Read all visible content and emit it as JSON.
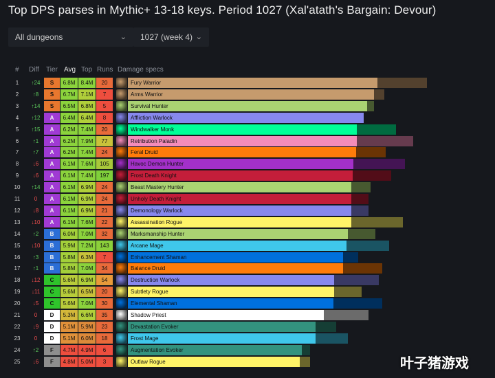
{
  "title": "Top DPS parses in Mythic+ 13-18 keys. Period 1027 (Xal'atath's Bargain: Devour)",
  "filters": {
    "dungeon": "All dungeons",
    "period": "1027 (week 4)"
  },
  "headers": {
    "rank": "#",
    "diff": "Diff",
    "tier": "Tier",
    "avg": "Avg",
    "top": "Top",
    "runs": "Runs",
    "specs": "Damage specs"
  },
  "colors": {
    "tierS": "#e8772e",
    "tierA": "#a03ad4",
    "tierB": "#2b6ed6",
    "tierC": "#2fc42b",
    "tierD": "#ffffff",
    "tierF": "#8e8e8e",
    "diffPos": "#5cc85c",
    "diffNeg": "#ee4e4e"
  },
  "watermark": "叶子猪游戏",
  "rows": [
    {
      "rank": "1",
      "diff": "↑24",
      "dir": "up",
      "tier": "S",
      "avg": "6.8M",
      "top": "8.4M",
      "runs": "20",
      "spec": "Fury Warrior",
      "color": "#c69b6d",
      "avgFrac": 0.725,
      "topFrac": 0.87,
      "avgBg": "#8bd33c",
      "topBg": "#8bd33c",
      "runsBg": "#e86a3a"
    },
    {
      "rank": "2",
      "diff": "↑8",
      "dir": "up",
      "tier": "S",
      "avg": "6.7M",
      "top": "7.1M",
      "runs": "7",
      "spec": "Arms Warrior",
      "color": "#c69b6d",
      "avgFrac": 0.715,
      "topFrac": 0.745,
      "avgBg": "#8bd33c",
      "topBg": "#b1cf3a",
      "runsBg": "#ee4e3e"
    },
    {
      "rank": "3",
      "diff": "↑14",
      "dir": "up",
      "tier": "S",
      "avg": "6.5M",
      "top": "6.8M",
      "runs": "5",
      "spec": "Survival Hunter",
      "color": "#aad372",
      "avgFrac": 0.695,
      "topFrac": 0.715,
      "avgBg": "#8bd33c",
      "topBg": "#b1cf3a",
      "runsBg": "#ee4e3e"
    },
    {
      "rank": "4",
      "diff": "↑12",
      "dir": "up",
      "tier": "A",
      "avg": "6.4M",
      "top": "6.4M",
      "runs": "8",
      "spec": "Affliction Warlock",
      "color": "#8788ee",
      "avgFrac": 0.685,
      "topFrac": 0.685,
      "avgBg": "#8bd33c",
      "topBg": "#b1cf3a",
      "runsBg": "#ee4e3e"
    },
    {
      "rank": "5",
      "diff": "↑15",
      "dir": "up",
      "tier": "A",
      "avg": "6.2M",
      "top": "7.4M",
      "runs": "20",
      "spec": "Windwalker Monk",
      "color": "#00ff98",
      "avgFrac": 0.665,
      "topFrac": 0.78,
      "avgBg": "#8bd33c",
      "topBg": "#8bd33c",
      "runsBg": "#e86a3a"
    },
    {
      "rank": "6",
      "diff": "↑1",
      "dir": "up",
      "tier": "A",
      "avg": "6.2M",
      "top": "7.9M",
      "runs": "77",
      "spec": "Retribution Paladin",
      "color": "#f48cba",
      "avgFrac": 0.665,
      "topFrac": 0.83,
      "avgBg": "#8bd33c",
      "topBg": "#8bd33c",
      "runsBg": "#c9c23a"
    },
    {
      "rank": "7",
      "diff": "↑7",
      "dir": "up",
      "tier": "A",
      "avg": "6.2M",
      "top": "7.4M",
      "runs": "24",
      "spec": "Feral Druid",
      "color": "#ff7c0a",
      "avgFrac": 0.663,
      "topFrac": 0.75,
      "avgBg": "#8bd33c",
      "topBg": "#8bd33c",
      "runsBg": "#e86a3a"
    },
    {
      "rank": "8",
      "diff": "↓6",
      "dir": "down",
      "tier": "A",
      "avg": "6.1M",
      "top": "7.6M",
      "runs": "105",
      "spec": "Havoc Demon Hunter",
      "color": "#a330c9",
      "avgFrac": 0.655,
      "topFrac": 0.805,
      "avgBg": "#8bd33c",
      "topBg": "#8bd33c",
      "runsBg": "#a8c83a"
    },
    {
      "rank": "9",
      "diff": "↓6",
      "dir": "down",
      "tier": "A",
      "avg": "6.1M",
      "top": "7.4M",
      "runs": "197",
      "spec": "Frost Death Knight",
      "color": "#c41e3a",
      "avgFrac": 0.653,
      "topFrac": 0.765,
      "avgBg": "#8bd33c",
      "topBg": "#8bd33c",
      "runsBg": "#7fd03a"
    },
    {
      "rank": "10",
      "diff": "↑14",
      "dir": "up",
      "tier": "A",
      "avg": "6.1M",
      "top": "6.9M",
      "runs": "24",
      "spec": "Beast Mastery Hunter",
      "color": "#aad372",
      "avgFrac": 0.65,
      "topFrac": 0.705,
      "avgBg": "#8bd33c",
      "topBg": "#b1cf3a",
      "runsBg": "#e86a3a"
    },
    {
      "rank": "11",
      "diff": "0",
      "dir": "neg",
      "tier": "A",
      "avg": "6.1M",
      "top": "6.9M",
      "runs": "24",
      "spec": "Unholy Death Knight",
      "color": "#c41e3a",
      "avgFrac": 0.65,
      "topFrac": 0.7,
      "avgBg": "#8bd33c",
      "topBg": "#b1cf3a",
      "runsBg": "#e86a3a"
    },
    {
      "rank": "12",
      "diff": "↓8",
      "dir": "down",
      "tier": "A",
      "avg": "6.1M",
      "top": "6.9M",
      "runs": "21",
      "spec": "Demonology Warlock",
      "color": "#8788ee",
      "avgFrac": 0.65,
      "topFrac": 0.7,
      "avgBg": "#8bd33c",
      "topBg": "#b1cf3a",
      "runsBg": "#e86a3a"
    },
    {
      "rank": "13",
      "diff": "↓10",
      "dir": "down",
      "tier": "A",
      "avg": "6.1M",
      "top": "7.6M",
      "runs": "22",
      "spec": "Assassination Rogue",
      "color": "#fff468",
      "avgFrac": 0.65,
      "topFrac": 0.8,
      "avgBg": "#8bd33c",
      "topBg": "#8bd33c",
      "runsBg": "#e86a3a"
    },
    {
      "rank": "14",
      "diff": "↑2",
      "dir": "up",
      "tier": "B",
      "avg": "6.0M",
      "top": "7.0M",
      "runs": "32",
      "spec": "Marksmanship Hunter",
      "color": "#aad372",
      "avgFrac": 0.64,
      "topFrac": 0.72,
      "avgBg": "#a3d03a",
      "topBg": "#8bd33c",
      "runsBg": "#e86a3a"
    },
    {
      "rank": "15",
      "diff": "↓10",
      "dir": "down",
      "tier": "B",
      "avg": "5.9M",
      "top": "7.2M",
      "runs": "143",
      "spec": "Arcane Mage",
      "color": "#3fc7eb",
      "avgFrac": 0.635,
      "topFrac": 0.76,
      "avgBg": "#a3d03a",
      "topBg": "#8bd33c",
      "runsBg": "#8bd03a"
    },
    {
      "rank": "16",
      "diff": "↑3",
      "dir": "up",
      "tier": "B",
      "avg": "5.8M",
      "top": "6.3M",
      "runs": "7",
      "spec": "Enhancement Shaman",
      "color": "#0070dd",
      "avgFrac": 0.625,
      "topFrac": 0.67,
      "avgBg": "#a3d03a",
      "topBg": "#c9c23a",
      "runsBg": "#ee4e3e"
    },
    {
      "rank": "17",
      "diff": "↑1",
      "dir": "up",
      "tier": "B",
      "avg": "5.8M",
      "top": "7.0M",
      "runs": "34",
      "spec": "Balance Druid",
      "color": "#ff7c0a",
      "avgFrac": 0.625,
      "topFrac": 0.74,
      "avgBg": "#a3d03a",
      "topBg": "#8bd33c",
      "runsBg": "#e86a3a"
    },
    {
      "rank": "18",
      "diff": "↓12",
      "dir": "down",
      "tier": "C",
      "avg": "5.6M",
      "top": "6.9M",
      "runs": "54",
      "spec": "Destruction Warlock",
      "color": "#8788ee",
      "avgFrac": 0.6,
      "topFrac": 0.73,
      "avgBg": "#b8cc3a",
      "topBg": "#b1cf3a",
      "runsBg": "#e89a3a"
    },
    {
      "rank": "19",
      "diff": "↓11",
      "dir": "down",
      "tier": "C",
      "avg": "5.6M",
      "top": "6.5M",
      "runs": "20",
      "spec": "Subtlety Rogue",
      "color": "#fff468",
      "avgFrac": 0.6,
      "topFrac": 0.68,
      "avgBg": "#b8cc3a",
      "topBg": "#c9c23a",
      "runsBg": "#e86a3a"
    },
    {
      "rank": "20",
      "diff": "↓5",
      "dir": "down",
      "tier": "C",
      "avg": "5.6M",
      "top": "7.0M",
      "runs": "30",
      "spec": "Elemental Shaman",
      "color": "#0070dd",
      "avgFrac": 0.597,
      "topFrac": 0.74,
      "avgBg": "#b8cc3a",
      "topBg": "#8bd33c",
      "runsBg": "#e86a3a"
    },
    {
      "rank": "21",
      "diff": "0",
      "dir": "neg",
      "tier": "D",
      "avg": "5.3M",
      "top": "6.6M",
      "runs": "35",
      "spec": "Shadow Priest",
      "color": "#ffffff",
      "avgFrac": 0.57,
      "topFrac": 0.7,
      "avgBg": "#d4b83a",
      "topBg": "#b1cf3a",
      "runsBg": "#e86a3a"
    },
    {
      "rank": "22",
      "diff": "↓9",
      "dir": "down",
      "tier": "D",
      "avg": "5.1M",
      "top": "5.9M",
      "runs": "23",
      "spec": "Devastation Evoker",
      "color": "#33937f",
      "avgFrac": 0.545,
      "topFrac": 0.605,
      "avgBg": "#e0913a",
      "topBg": "#dc8a3a",
      "runsBg": "#e86a3a"
    },
    {
      "rank": "23",
      "diff": "0",
      "dir": "neg",
      "tier": "D",
      "avg": "5.1M",
      "top": "6.0M",
      "runs": "18",
      "spec": "Frost Mage",
      "color": "#3fc7eb",
      "avgFrac": 0.545,
      "topFrac": 0.64,
      "avgBg": "#e0913a",
      "topBg": "#dc8a3a",
      "runsBg": "#e86a3a"
    },
    {
      "rank": "24",
      "diff": "↑2",
      "dir": "up",
      "tier": "F",
      "avg": "4.7M",
      "top": "4.9M",
      "runs": "6",
      "spec": "Augmentation Evoker",
      "color": "#33937f",
      "avgFrac": 0.505,
      "topFrac": 0.53,
      "avgBg": "#ee4e3e",
      "topBg": "#ee4e3e",
      "runsBg": "#ee4e3e"
    },
    {
      "rank": "25",
      "diff": "↓6",
      "dir": "down",
      "tier": "F",
      "avg": "4.8M",
      "top": "5.0M",
      "runs": "3",
      "spec": "Outlaw Rogue",
      "color": "#fff468",
      "avgFrac": 0.5,
      "topFrac": 0.53,
      "avgBg": "#ee4e3e",
      "topBg": "#ee4e3e",
      "runsBg": "#ee4e3e"
    }
  ]
}
